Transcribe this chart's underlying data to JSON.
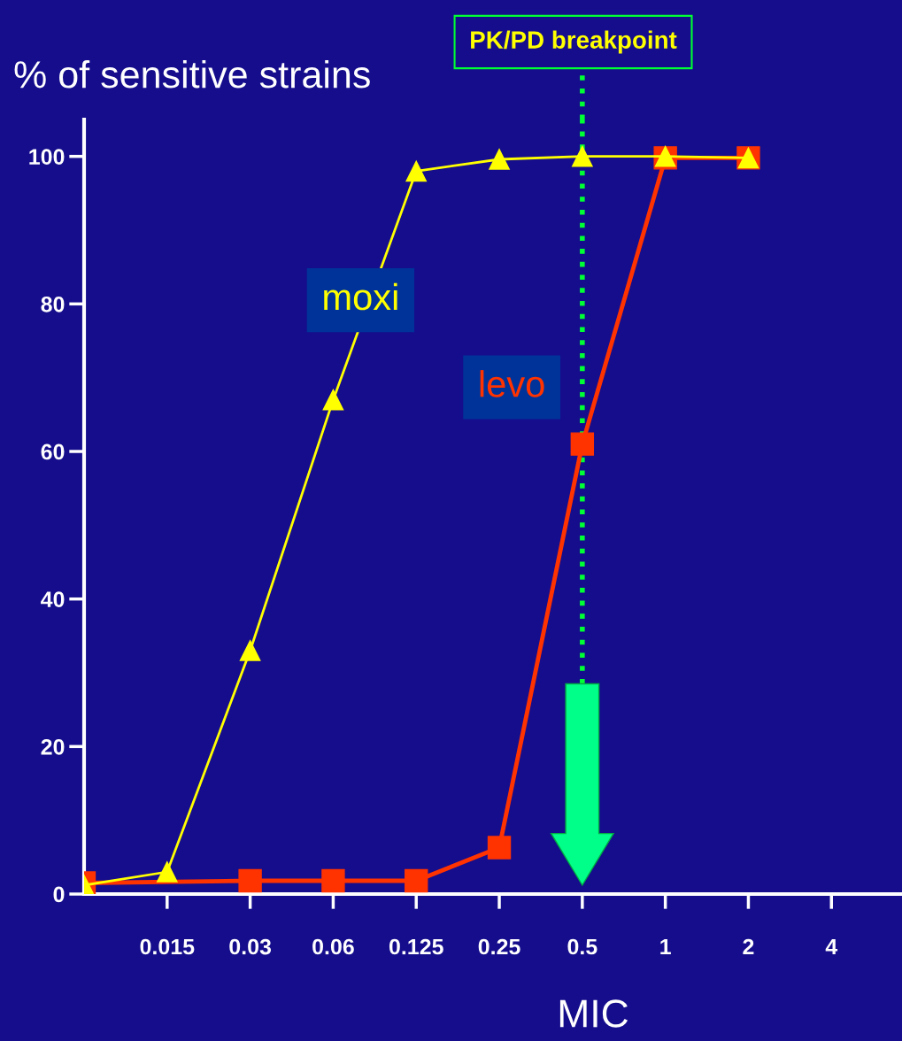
{
  "chart_data": {
    "type": "line",
    "xlabel": "MIC",
    "ylabel": "% of sensitive strains",
    "categories": [
      null,
      "0.015",
      "0.03",
      "0.06",
      "0.125",
      "0.25",
      "0.5",
      "1",
      "2",
      "4"
    ],
    "series": [
      {
        "name": "moxi",
        "color": "#ffff00",
        "marker": "triangle",
        "values": [
          1.2,
          3,
          33,
          67,
          98,
          99.6,
          100,
          100,
          99.8,
          null
        ]
      },
      {
        "name": "levo",
        "color": "#ff3300",
        "marker": "square",
        "values": [
          1.5,
          null,
          1.8,
          1.8,
          1.8,
          6.3,
          61,
          99.8,
          99.8,
          null
        ]
      }
    ],
    "ylim": [
      0,
      105
    ],
    "yticks": [
      0,
      20,
      40,
      60,
      80,
      100
    ],
    "grid": false,
    "legend": false,
    "ref_lines": [
      {
        "axis": "x",
        "value": "0.5",
        "label": "PK/PD breakpoint",
        "color": "#00ff33",
        "line_style": "dotted"
      }
    ]
  }
}
